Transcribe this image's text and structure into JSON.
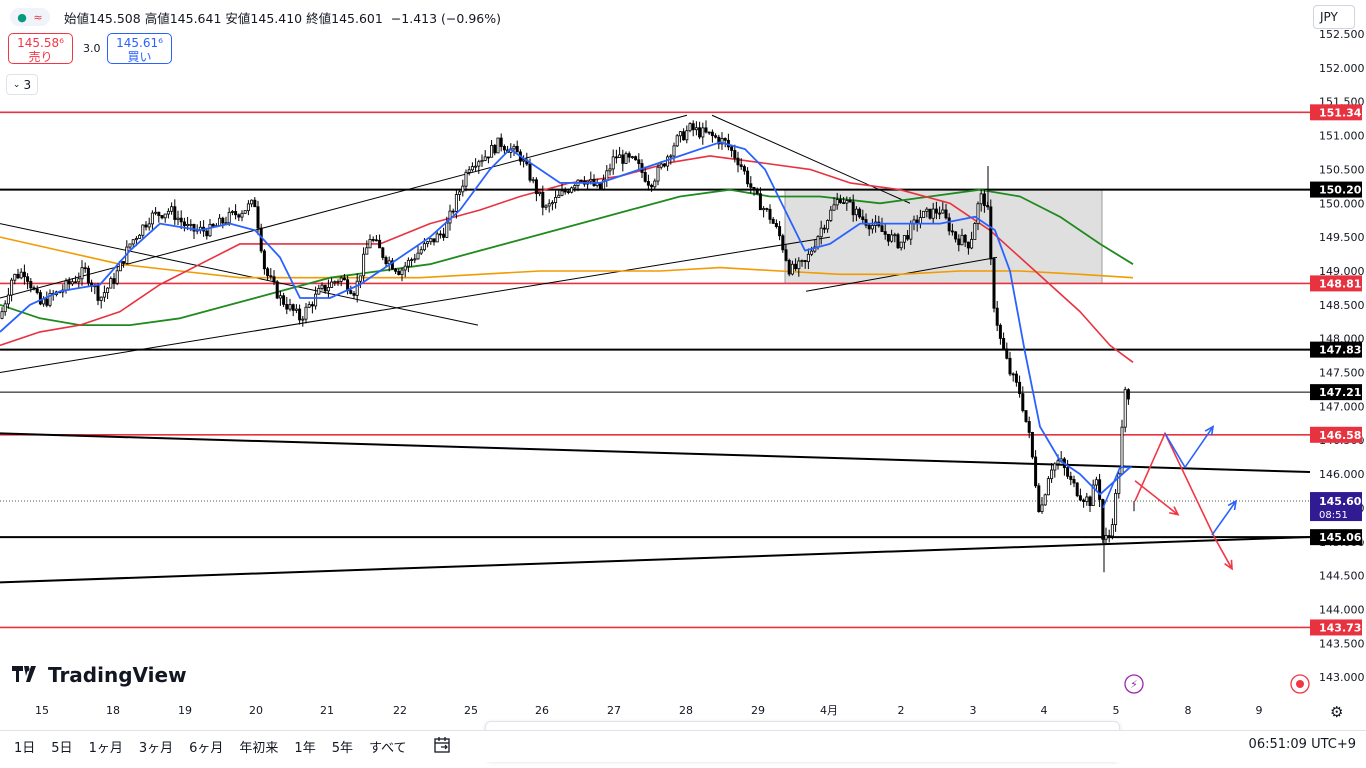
{
  "header": {
    "open_label": "始値",
    "open": "145.508",
    "high_label": "高値",
    "high": "145.641",
    "low_label": "安値",
    "low": "145.410",
    "close_label": "終値",
    "close": "145.601",
    "change": "−1.413 (−0.96%)",
    "sell_price": "145.58⁶",
    "sell_label": "売り",
    "buy_price": "145.61⁶",
    "buy_label": "買い",
    "spread": "3.0",
    "collapsed_count": "3",
    "currency": "JPY"
  },
  "logo_text": "TradingView",
  "bottom_bar": {
    "ranges": [
      "1日",
      "5日",
      "1ヶ月",
      "3ヶ月",
      "6ヶ月",
      "年初来",
      "1年",
      "5年",
      "すべて"
    ],
    "clock": "06:51:09 UTC+9"
  },
  "toolbar": {
    "tools": [
      "trend-line-icon",
      "horizontal-ray-icon",
      "parallel-channel-icon",
      "pitchfork-icon",
      "fib-channel-icon",
      "curve-icon",
      "ellipse-icon",
      "arrow-icon",
      "brush-icon",
      "highlighter-icon",
      "rectangle-icon",
      "triangle-icon",
      "path-icon",
      "pattern-icon",
      "text-icon",
      "price-range-icon"
    ]
  },
  "colors": {
    "bull": "#000000",
    "bear": "#000000",
    "sma_fast": "#2962ff",
    "sma_mid": "#e8323f",
    "sma_slow": "#1f8a1f",
    "sma_long": "#f29b00",
    "red_level": "#e8323f",
    "black_level": "#000000",
    "last_price_bg": "#311b92"
  },
  "chart_data": {
    "type": "candlestick",
    "symbol_currency": "JPY",
    "y_ticks": [
      "152.500",
      "152.000",
      "151.500",
      "151.000",
      "150.500",
      "150.000",
      "149.500",
      "149.000",
      "148.500",
      "148.000",
      "147.500",
      "147.000",
      "146.500",
      "146.000",
      "145.500",
      "145.000",
      "144.500",
      "144.000",
      "143.500",
      "143.000"
    ],
    "x_ticks": [
      "15",
      "18",
      "19",
      "20",
      "21",
      "22",
      "25",
      "26",
      "27",
      "28",
      "29",
      "4月",
      "2",
      "3",
      "4",
      "5",
      "8",
      "9"
    ],
    "ylim": [
      142.8,
      152.55
    ],
    "horizontal_levels": [
      {
        "price": 151.343,
        "label": "151.343",
        "color": "red"
      },
      {
        "price": 150.202,
        "label": "150.202",
        "color": "black"
      },
      {
        "price": 148.816,
        "label": "148.816",
        "color": "red"
      },
      {
        "price": 147.838,
        "label": "147.838",
        "color": "black"
      },
      {
        "price": 147.21,
        "label": "147.210",
        "color": "black"
      },
      {
        "price": 146.58,
        "label": "146.580",
        "color": "red"
      },
      {
        "price": 145.068,
        "label": "145.068",
        "color": "black"
      },
      {
        "price": 143.734,
        "label": "143.734",
        "color": "red"
      }
    ],
    "last_price": {
      "price": 145.601,
      "label": "145.601",
      "countdown": "08:51"
    },
    "ohlc_path": [
      [
        0,
        148.3
      ],
      [
        12,
        148.9
      ],
      [
        25,
        149.0
      ],
      [
        40,
        148.5
      ],
      [
        60,
        148.7
      ],
      [
        85,
        149.0
      ],
      [
        100,
        148.6
      ],
      [
        115,
        148.9
      ],
      [
        130,
        149.4
      ],
      [
        150,
        149.8
      ],
      [
        170,
        149.9
      ],
      [
        190,
        149.6
      ],
      [
        210,
        149.6
      ],
      [
        230,
        149.8
      ],
      [
        255,
        150.0
      ],
      [
        265,
        149.0
      ],
      [
        280,
        148.6
      ],
      [
        300,
        148.3
      ],
      [
        320,
        148.7
      ],
      [
        340,
        148.9
      ],
      [
        355,
        148.7
      ],
      [
        370,
        149.5
      ],
      [
        385,
        149.2
      ],
      [
        400,
        149.0
      ],
      [
        420,
        149.3
      ],
      [
        445,
        149.6
      ],
      [
        470,
        150.6
      ],
      [
        485,
        150.7
      ],
      [
        500,
        150.9
      ],
      [
        520,
        150.7
      ],
      [
        530,
        150.4
      ],
      [
        545,
        149.9
      ],
      [
        560,
        150.1
      ],
      [
        580,
        150.4
      ],
      [
        600,
        150.2
      ],
      [
        615,
        150.7
      ],
      [
        635,
        150.6
      ],
      [
        650,
        150.3
      ],
      [
        660,
        150.5
      ],
      [
        675,
        150.9
      ],
      [
        690,
        151.1
      ],
      [
        710,
        151.0
      ],
      [
        725,
        150.9
      ],
      [
        740,
        150.6
      ],
      [
        755,
        150.1
      ],
      [
        770,
        149.8
      ],
      [
        780,
        149.5
      ],
      [
        790,
        149.0
      ],
      [
        805,
        149.1
      ],
      [
        820,
        149.6
      ],
      [
        840,
        150.1
      ],
      [
        860,
        149.8
      ],
      [
        880,
        149.6
      ],
      [
        900,
        149.4
      ],
      [
        920,
        149.8
      ],
      [
        940,
        149.9
      ],
      [
        955,
        149.5
      ],
      [
        970,
        149.4
      ],
      [
        980,
        150.1
      ],
      [
        987,
        150.0
      ],
      [
        993,
        148.6
      ],
      [
        1000,
        148.0
      ],
      [
        1010,
        147.5
      ],
      [
        1020,
        147.2
      ],
      [
        1030,
        146.5
      ],
      [
        1040,
        145.4
      ],
      [
        1050,
        146.1
      ],
      [
        1060,
        146.2
      ],
      [
        1070,
        145.9
      ],
      [
        1080,
        145.7
      ],
      [
        1090,
        145.6
      ],
      [
        1098,
        146.0
      ],
      [
        1103,
        145.0
      ],
      [
        1110,
        145.1
      ],
      [
        1118,
        145.9
      ],
      [
        1125,
        147.2
      ],
      [
        1130,
        147.0
      ]
    ],
    "sma_fast": [
      [
        0,
        148.1
      ],
      [
        30,
        148.5
      ],
      [
        60,
        148.7
      ],
      [
        100,
        148.8
      ],
      [
        130,
        149.3
      ],
      [
        160,
        149.7
      ],
      [
        200,
        149.6
      ],
      [
        230,
        149.7
      ],
      [
        255,
        149.6
      ],
      [
        280,
        149.2
      ],
      [
        300,
        148.6
      ],
      [
        330,
        148.6
      ],
      [
        360,
        148.8
      ],
      [
        390,
        149.1
      ],
      [
        430,
        149.5
      ],
      [
        460,
        149.9
      ],
      [
        490,
        150.5
      ],
      [
        510,
        150.8
      ],
      [
        530,
        150.6
      ],
      [
        560,
        150.3
      ],
      [
        600,
        150.3
      ],
      [
        640,
        150.5
      ],
      [
        680,
        150.7
      ],
      [
        720,
        150.9
      ],
      [
        745,
        150.8
      ],
      [
        765,
        150.5
      ],
      [
        785,
        149.9
      ],
      [
        805,
        149.3
      ],
      [
        830,
        149.4
      ],
      [
        860,
        149.7
      ],
      [
        900,
        149.7
      ],
      [
        940,
        149.7
      ],
      [
        975,
        149.8
      ],
      [
        995,
        149.6
      ],
      [
        1010,
        149.0
      ],
      [
        1025,
        147.8
      ],
      [
        1040,
        146.7
      ],
      [
        1060,
        146.2
      ],
      [
        1080,
        146.0
      ],
      [
        1100,
        145.7
      ],
      [
        1115,
        145.9
      ],
      [
        1130,
        146.1
      ]
    ],
    "sma_mid": [
      [
        0,
        147.9
      ],
      [
        40,
        148.1
      ],
      [
        80,
        148.2
      ],
      [
        120,
        148.4
      ],
      [
        160,
        148.8
      ],
      [
        200,
        149.1
      ],
      [
        240,
        149.4
      ],
      [
        280,
        149.4
      ],
      [
        330,
        149.4
      ],
      [
        380,
        149.4
      ],
      [
        430,
        149.7
      ],
      [
        480,
        149.9
      ],
      [
        520,
        150.1
      ],
      [
        570,
        150.3
      ],
      [
        620,
        150.4
      ],
      [
        670,
        150.6
      ],
      [
        710,
        150.7
      ],
      [
        760,
        150.6
      ],
      [
        810,
        150.5
      ],
      [
        850,
        150.3
      ],
      [
        900,
        150.2
      ],
      [
        950,
        150.0
      ],
      [
        990,
        149.6
      ],
      [
        1020,
        149.2
      ],
      [
        1050,
        148.8
      ],
      [
        1080,
        148.4
      ],
      [
        1110,
        147.9
      ],
      [
        1133,
        147.65
      ]
    ],
    "sma_slow": [
      [
        0,
        148.5
      ],
      [
        40,
        148.3
      ],
      [
        80,
        148.2
      ],
      [
        130,
        148.2
      ],
      [
        180,
        148.3
      ],
      [
        230,
        148.5
      ],
      [
        280,
        148.7
      ],
      [
        330,
        148.9
      ],
      [
        380,
        149.0
      ],
      [
        430,
        149.1
      ],
      [
        480,
        149.3
      ],
      [
        530,
        149.5
      ],
      [
        580,
        149.7
      ],
      [
        630,
        149.9
      ],
      [
        680,
        150.1
      ],
      [
        730,
        150.2
      ],
      [
        770,
        150.1
      ],
      [
        820,
        150.1
      ],
      [
        880,
        150.0
      ],
      [
        930,
        150.1
      ],
      [
        980,
        150.2
      ],
      [
        1020,
        150.1
      ],
      [
        1060,
        149.8
      ],
      [
        1100,
        149.4
      ],
      [
        1133,
        149.1
      ]
    ],
    "sma_long": [
      [
        0,
        149.5
      ],
      [
        60,
        149.3
      ],
      [
        120,
        149.1
      ],
      [
        180,
        149.0
      ],
      [
        240,
        148.9
      ],
      [
        300,
        148.9
      ],
      [
        360,
        148.9
      ],
      [
        420,
        148.9
      ],
      [
        480,
        148.95
      ],
      [
        540,
        149.0
      ],
      [
        600,
        149.0
      ],
      [
        660,
        149.0
      ],
      [
        720,
        149.05
      ],
      [
        780,
        149.0
      ],
      [
        840,
        148.95
      ],
      [
        900,
        148.95
      ],
      [
        960,
        149.0
      ],
      [
        1020,
        149.0
      ],
      [
        1080,
        148.95
      ],
      [
        1133,
        148.9
      ]
    ],
    "trendlines": [
      {
        "from": [
          0,
          149.7
        ],
        "to": [
          478,
          148.2
        ]
      },
      {
        "from": [
          0,
          148.6
        ],
        "to": [
          687,
          151.3
        ]
      },
      {
        "from": [
          0,
          147.5
        ],
        "to": [
          830,
          149.5
        ]
      },
      {
        "from": [
          712,
          151.3
        ],
        "to": [
          910,
          150.0
        ]
      },
      {
        "from": [
          806,
          148.7
        ],
        "to": [
          997,
          149.2
        ]
      },
      {
        "from": [
          0,
          146.6
        ],
        "to": [
          1310,
          146.03
        ]
      },
      {
        "from": [
          0,
          144.4
        ],
        "to": [
          1310,
          145.07
        ]
      }
    ],
    "shaded_zone": {
      "x0": 785,
      "x1": 1102,
      "top": 150.202,
      "bottom": 148.816
    },
    "projections": {
      "red": [
        [
          1135,
          145.6
        ],
        [
          1165,
          146.6
        ],
        [
          1215,
          145.05
        ],
        [
          1232,
          144.6
        ]
      ],
      "red2": [
        [
          1135,
          145.9
        ],
        [
          1178,
          145.4
        ]
      ],
      "blue": [
        [
          1103,
          145.5
        ],
        [
          1120,
          146.1
        ],
        [
          1132,
          146.1
        ]
      ],
      "blue2": [
        [
          1185,
          146.1
        ],
        [
          1213,
          146.7
        ]
      ],
      "blue3": [
        [
          1212,
          145.1
        ],
        [
          1236,
          145.6
        ]
      ]
    }
  }
}
